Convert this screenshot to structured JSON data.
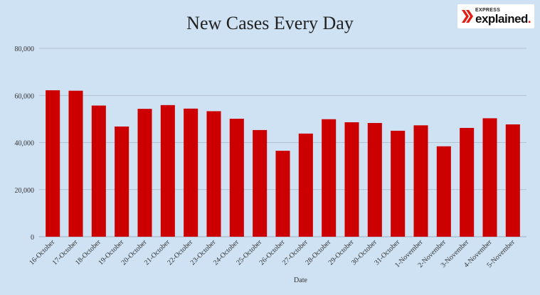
{
  "logo": {
    "top": "EXPRESS",
    "main": "explained",
    "dot": ".",
    "color": "#e41b13"
  },
  "chart_data": {
    "type": "bar",
    "title": "New Cases Every Day",
    "xlabel": "Date",
    "ylabel": "",
    "ylim": [
      0,
      80000
    ],
    "yticks": [
      0,
      20000,
      40000,
      60000,
      80000
    ],
    "ytick_labels": [
      "0",
      "20,000",
      "40,000",
      "60,000",
      "80,000"
    ],
    "grid": true,
    "bar_color": "#cc0000",
    "gridline_color": "#a9b7c4",
    "categories": [
      "16-October",
      "17-October",
      "18-October",
      "19-October",
      "20-October",
      "21-October",
      "22-October",
      "23-October",
      "24-October",
      "25-October",
      "26-October",
      "27-October",
      "28-October",
      "29-October",
      "30-October",
      "31-October",
      "1-November",
      "2-November",
      "3-November",
      "4-November",
      "5-November"
    ],
    "values": [
      62200,
      62000,
      55700,
      46800,
      54300,
      55900,
      54400,
      53300,
      50100,
      45300,
      36500,
      43800,
      49900,
      48600,
      48300,
      45000,
      47300,
      38400,
      46200,
      50300,
      47700
    ]
  }
}
